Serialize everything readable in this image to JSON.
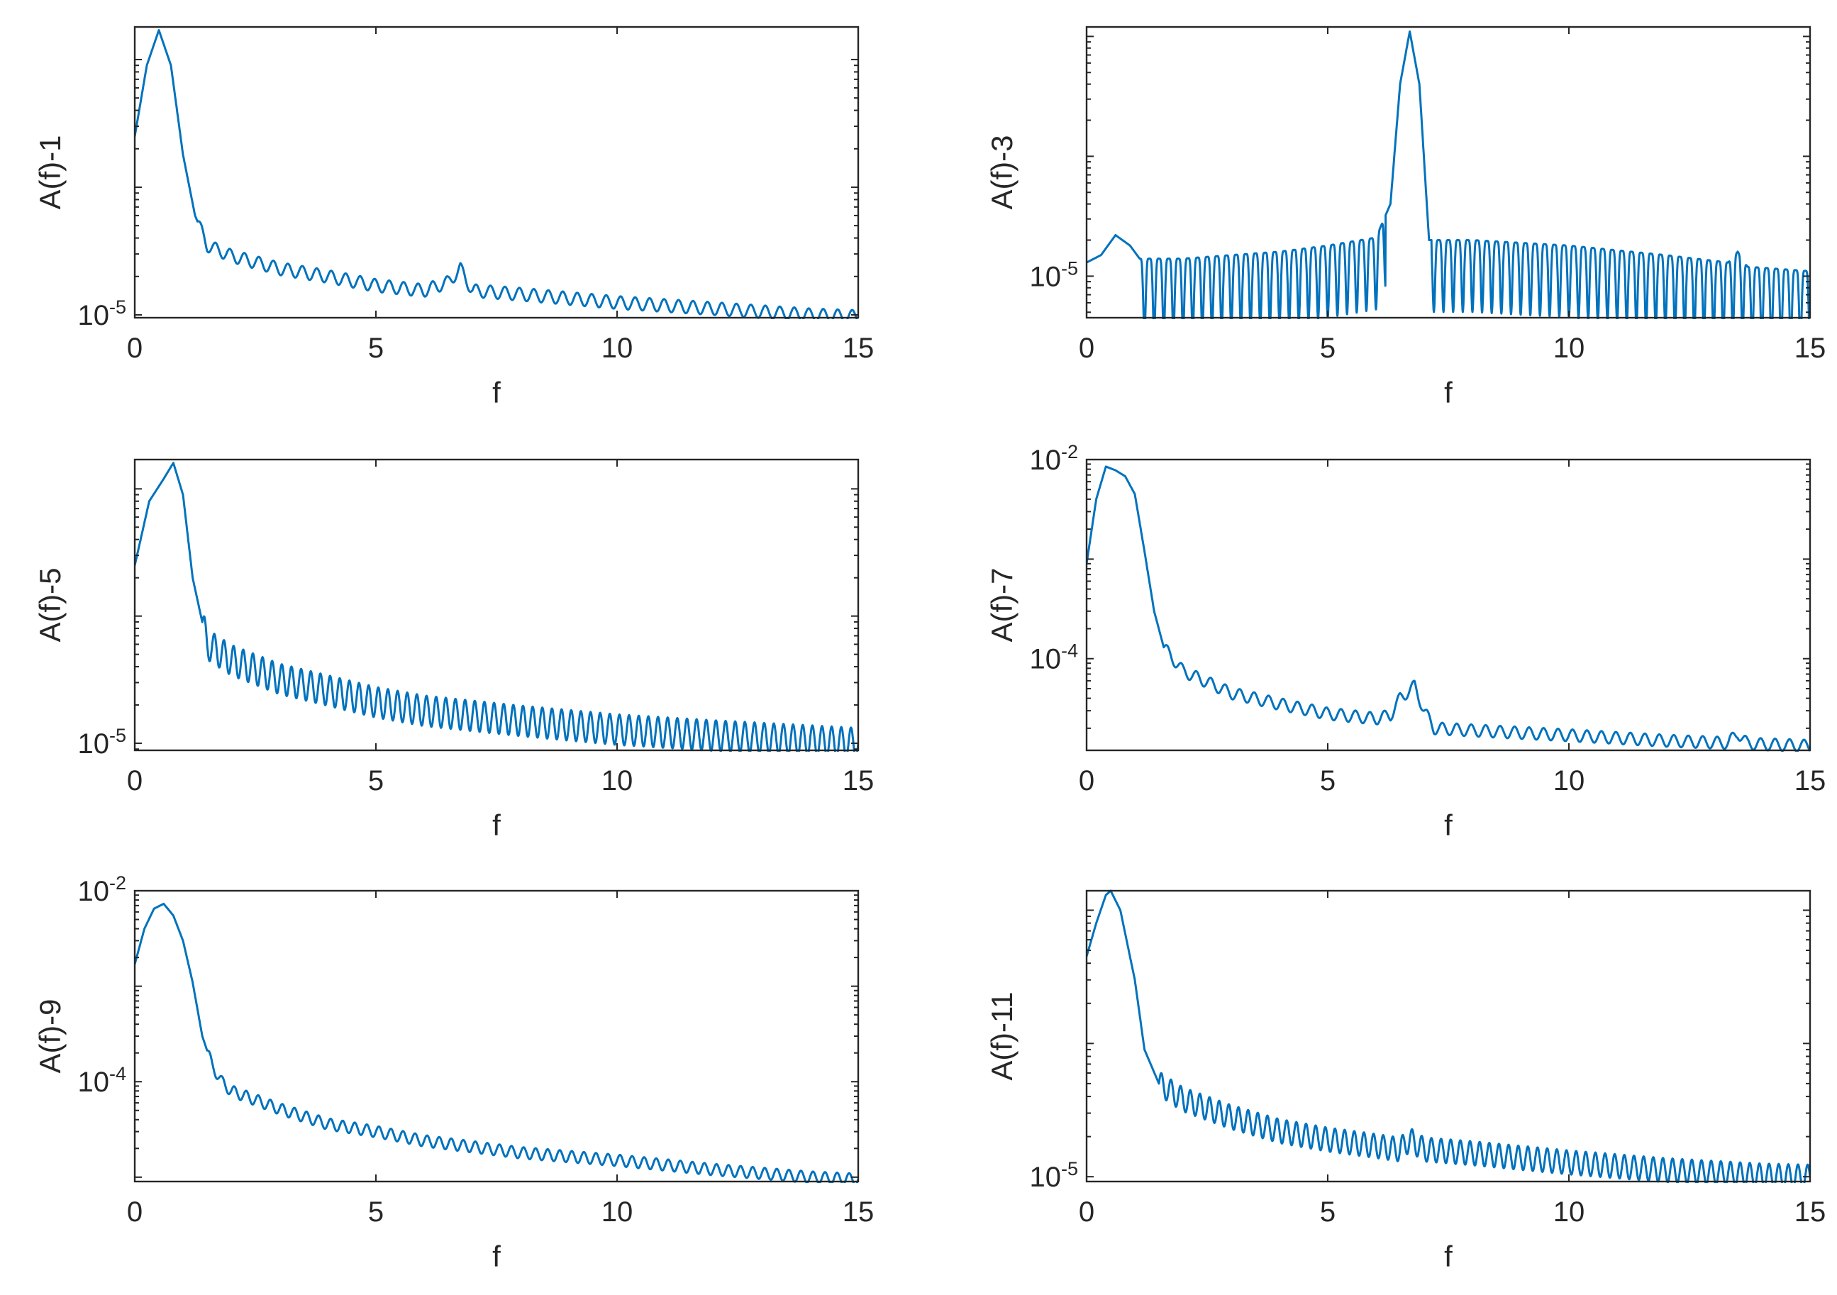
{
  "figure": {
    "line_color": "#0072BD",
    "axis_color": "#262626"
  },
  "chart_data": [
    {
      "type": "line",
      "ylabel": "A(f)-1",
      "xlabel": "f",
      "xlim": [
        0,
        15
      ],
      "xticks": [
        "0",
        "5",
        "10",
        "15"
      ],
      "yscale": "log",
      "ylim": [
        9.5e-06,
        0.0018
      ],
      "yticks": [
        {
          "base": "10",
          "exp": "-5",
          "value": 1e-05
        }
      ],
      "series": [
        {
          "name": "A(f)-1",
          "x": [
            0,
            0.25,
            0.5,
            0.75,
            1.0,
            1.25,
            1.5,
            2.0,
            3.0,
            4.0,
            5.0,
            6.0,
            6.5,
            6.75,
            7.0,
            8.0,
            10.0,
            12.0,
            14.0,
            15.0
          ],
          "y": [
            0.00025,
            0.0009,
            0.0017,
            0.0009,
            0.00018,
            6e-05,
            3.5e-05,
            2.9e-05,
            2.3e-05,
            2e-05,
            1.7e-05,
            1.55e-05,
            1.8e-05,
            2.3e-05,
            1.55e-05,
            1.45e-05,
            1.25e-05,
            1.12e-05,
            1e-05,
            9.7e-06
          ]
        }
      ],
      "wiggle": {
        "start": 1.3,
        "period": 0.3,
        "amp": 0.05
      }
    },
    {
      "type": "line",
      "ylabel": "A(f)-3",
      "xlabel": "f",
      "xlim": [
        0,
        15
      ],
      "xticks": [
        "0",
        "5",
        "10",
        "15"
      ],
      "yscale": "log",
      "ylim": [
        4.5e-06,
        0.0012
      ],
      "yticks": [
        {
          "base": "10",
          "exp": "-5",
          "value": 1e-05
        }
      ],
      "series": [
        {
          "name": "A(f)-3",
          "x": [
            0,
            0.3,
            0.6,
            0.9,
            1.1,
            2.0,
            3.0,
            4.0,
            5.0,
            6.0,
            6.3,
            6.5,
            6.7,
            6.9,
            7.1,
            8.0,
            10.0,
            12.0,
            13.3,
            13.5,
            13.7,
            15.0
          ],
          "y": [
            1.3e-05,
            1.5e-05,
            2.2e-05,
            1.8e-05,
            1.4e-05,
            1.4e-05,
            1.5e-05,
            1.6e-05,
            1.8e-05,
            2.1e-05,
            4e-05,
            0.0004,
            0.0011,
            0.0004,
            2e-05,
            2e-05,
            1.8e-05,
            1.5e-05,
            1.3e-05,
            1.6e-05,
            1.2e-05,
            1.1e-05
          ]
        }
      ],
      "ripple": {
        "start": 1.1,
        "period": 0.2,
        "depth": 0.6
      }
    },
    {
      "type": "line",
      "ylabel": "A(f)-5",
      "xlabel": "f",
      "xlim": [
        0,
        15
      ],
      "xticks": [
        "0",
        "5",
        "10",
        "15"
      ],
      "yscale": "log",
      "ylim": [
        8.8e-06,
        0.0017
      ],
      "yticks": [
        {
          "base": "10",
          "exp": "-5",
          "value": 1e-05
        }
      ],
      "series": [
        {
          "name": "A(f)-5",
          "x": [
            0,
            0.3,
            0.6,
            0.8,
            1.0,
            1.2,
            1.5,
            2.0,
            3.0,
            4.0,
            5.0,
            6.0,
            8.0,
            10.0,
            12.0,
            14.0,
            15.0
          ],
          "y": [
            0.00025,
            0.0008,
            0.0012,
            0.0016,
            0.0009,
            0.0002,
            6e-05,
            4.5e-05,
            3.2e-05,
            2.6e-05,
            2.1e-05,
            1.8e-05,
            1.5e-05,
            1.28e-05,
            1.15e-05,
            1.05e-05,
            1e-05
          ]
        }
      ],
      "wiggle": {
        "start": 1.4,
        "period": 0.2,
        "amp": 0.12
      }
    },
    {
      "type": "line",
      "ylabel": "A(f)-7",
      "xlabel": "f",
      "xlim": [
        0,
        15
      ],
      "xticks": [
        "0",
        "5",
        "10",
        "15"
      ],
      "yscale": "log",
      "ylim": [
        1.2e-05,
        0.01
      ],
      "yticks": [
        {
          "base": "10",
          "exp": "-2",
          "value": 0.01
        },
        {
          "base": "10",
          "exp": "-4",
          "value": 0.0001
        }
      ],
      "series": [
        {
          "name": "A(f)-7",
          "x": [
            0,
            0.2,
            0.4,
            0.6,
            0.8,
            1.0,
            1.2,
            1.4,
            1.6,
            2.0,
            3.0,
            4.0,
            5.0,
            6.0,
            6.3,
            6.5,
            6.8,
            7.0,
            7.2,
            8.0,
            10.0,
            12.0,
            13.3,
            13.5,
            13.7,
            15.0
          ],
          "y": [
            0.0009,
            0.004,
            0.0085,
            0.0078,
            0.0068,
            0.0045,
            0.0012,
            0.0003,
            0.00013,
            7.5e-05,
            4.5e-05,
            3.5e-05,
            2.8e-05,
            2.5e-05,
            2.7e-05,
            4e-05,
            5.3e-05,
            3e-05,
            2e-05,
            1.9e-05,
            1.7e-05,
            1.5e-05,
            1.42e-05,
            1.8e-05,
            1.4e-05,
            1.33e-05
          ]
        }
      ],
      "wiggle": {
        "start": 1.6,
        "period": 0.3,
        "amp": 0.06
      }
    },
    {
      "type": "line",
      "ylabel": "A(f)-9",
      "xlabel": "f",
      "xlim": [
        0,
        15
      ],
      "xticks": [
        "0",
        "5",
        "10",
        "15"
      ],
      "yscale": "log",
      "ylim": [
        9e-06,
        0.01
      ],
      "yticks": [
        {
          "base": "10",
          "exp": "-2",
          "value": 0.01
        },
        {
          "base": "10",
          "exp": "-4",
          "value": 0.0001
        }
      ],
      "series": [
        {
          "name": "A(f)-9",
          "x": [
            0,
            0.2,
            0.4,
            0.6,
            0.8,
            1.0,
            1.2,
            1.4,
            1.6,
            1.8,
            2.0,
            3.0,
            4.0,
            5.0,
            6.0,
            8.0,
            10.0,
            12.0,
            14.0,
            15.0
          ],
          "y": [
            0.0017,
            0.004,
            0.0065,
            0.0073,
            0.0055,
            0.003,
            0.0011,
            0.0003,
            0.00015,
            0.0001,
            8e-05,
            5.2e-05,
            3.6e-05,
            3e-05,
            2.4e-05,
            1.8e-05,
            1.5e-05,
            1.2e-05,
            1e-05,
            9.5e-06
          ]
        }
      ],
      "wiggle": {
        "start": 1.5,
        "period": 0.25,
        "amp": 0.06
      }
    },
    {
      "type": "line",
      "ylabel": "A(f)-11",
      "xlabel": "f",
      "xlim": [
        0,
        15
      ],
      "xticks": [
        "0",
        "5",
        "10",
        "15"
      ],
      "yscale": "log",
      "ylim": [
        9.2e-06,
        0.0014
      ],
      "yticks": [
        {
          "base": "10",
          "exp": "-5",
          "value": 1e-05
        }
      ],
      "series": [
        {
          "name": "A(f)-11",
          "x": [
            0,
            0.2,
            0.4,
            0.5,
            0.7,
            1.0,
            1.2,
            1.5,
            2.0,
            3.0,
            4.0,
            5.0,
            6.0,
            6.5,
            6.7,
            7.0,
            8.0,
            10.0,
            12.0,
            14.0,
            15.0
          ],
          "y": [
            0.00045,
            0.0008,
            0.0013,
            0.0014,
            0.001,
            0.0003,
            9e-05,
            5e-05,
            3.8e-05,
            2.8e-05,
            2.2e-05,
            1.9e-05,
            1.7e-05,
            1.6e-05,
            1.9e-05,
            1.6e-05,
            1.5e-05,
            1.28e-05,
            1.12e-05,
            1.02e-05,
            1e-05
          ]
        }
      ],
      "wiggle": {
        "start": 1.5,
        "period": 0.2,
        "amp": 0.09
      }
    }
  ]
}
